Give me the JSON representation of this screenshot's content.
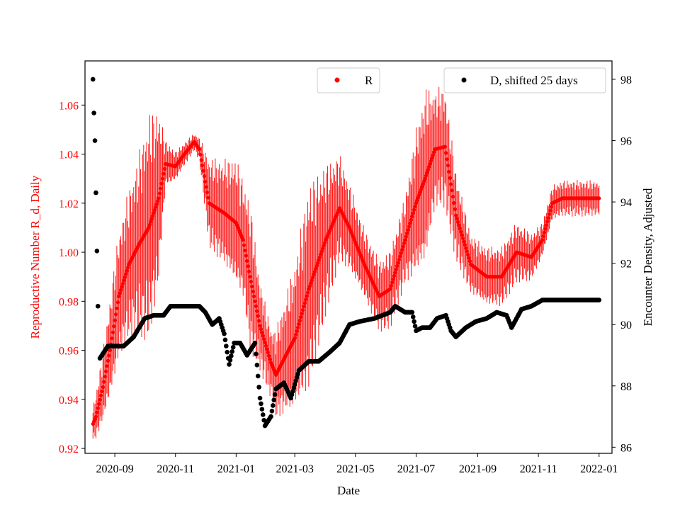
{
  "chart_data": {
    "type": "scatter",
    "xlabel": "Date",
    "ylabel_left": "Reproductive Number R_d, Daily",
    "ylabel_right": "Encounter Density, Adjusted",
    "xlim": [
      "2020-08-02",
      "2022-01-14"
    ],
    "ylim_left": [
      0.918,
      1.078
    ],
    "ylim_right": [
      85.8,
      98.6
    ],
    "x_ticks": [
      "2020-09-01",
      "2020-11-01",
      "2021-01-01",
      "2021-03-01",
      "2021-05-01",
      "2021-07-01",
      "2021-09-01",
      "2021-11-01",
      "2022-01-01"
    ],
    "x_tick_labels": [
      "2020-09",
      "2020-11",
      "2021-01",
      "2021-03",
      "2021-05",
      "2021-07",
      "2021-09",
      "2021-11",
      "2022-01"
    ],
    "y_ticks_left": [
      0.92,
      0.94,
      0.96,
      0.98,
      1.0,
      1.02,
      1.04,
      1.06
    ],
    "y_tick_labels_left": [
      "0.92",
      "0.94",
      "0.96",
      "0.98",
      "1.00",
      "1.02",
      "1.04",
      "1.06"
    ],
    "y_ticks_right": [
      86,
      88,
      90,
      92,
      94,
      96,
      98
    ],
    "y_tick_labels_right": [
      "86",
      "88",
      "90",
      "92",
      "94",
      "96",
      "98"
    ],
    "grid": false,
    "legend_r": {
      "label": "R",
      "position": "top-center"
    },
    "legend_d": {
      "label": "D, shifted 25 days",
      "position": "top-right"
    },
    "colors": {
      "R": "#ff0000",
      "D": "#000000",
      "left_axis": "#ff0000",
      "right_axis": "#000000"
    },
    "series": [
      {
        "name": "R",
        "axis": "left",
        "marker": "dot-with-errorbar",
        "knots": [
          [
            "2020-08-10",
            0.93,
            0.006
          ],
          [
            "2020-08-13",
            0.933,
            0.008
          ],
          [
            "2020-08-20",
            0.945,
            0.012
          ],
          [
            "2020-08-27",
            0.96,
            0.017
          ],
          [
            "2020-09-05",
            0.982,
            0.022
          ],
          [
            "2020-09-15",
            0.995,
            0.025
          ],
          [
            "2020-09-25",
            1.003,
            0.03
          ],
          [
            "2020-10-05",
            1.01,
            0.038
          ],
          [
            "2020-10-15",
            1.022,
            0.03
          ],
          [
            "2020-10-22",
            1.036,
            0.008
          ],
          [
            "2020-11-01",
            1.035,
            0.005
          ],
          [
            "2020-11-10",
            1.04,
            0.004
          ],
          [
            "2020-11-20",
            1.045,
            0.003
          ],
          [
            "2020-11-25",
            1.042,
            0.004
          ],
          [
            "2020-12-05",
            1.02,
            0.015
          ],
          [
            "2020-12-20",
            1.016,
            0.018
          ],
          [
            "2021-01-01",
            1.012,
            0.022
          ],
          [
            "2021-01-08",
            1.005,
            0.02
          ],
          [
            "2021-01-15",
            0.99,
            0.025
          ],
          [
            "2021-01-25",
            0.97,
            0.015
          ],
          [
            "2021-02-05",
            0.955,
            0.012
          ],
          [
            "2021-02-10",
            0.95,
            0.015
          ],
          [
            "2021-02-20",
            0.958,
            0.02
          ],
          [
            "2021-03-01",
            0.965,
            0.025
          ],
          [
            "2021-03-15",
            0.985,
            0.035
          ],
          [
            "2021-04-01",
            1.005,
            0.025
          ],
          [
            "2021-04-15",
            1.018,
            0.018
          ],
          [
            "2021-04-25",
            1.01,
            0.015
          ],
          [
            "2021-05-10",
            0.995,
            0.012
          ],
          [
            "2021-05-25",
            0.982,
            0.012
          ],
          [
            "2021-06-05",
            0.985,
            0.013
          ],
          [
            "2021-06-20",
            1.005,
            0.015
          ],
          [
            "2021-07-01",
            1.02,
            0.025
          ],
          [
            "2021-07-10",
            1.03,
            0.03
          ],
          [
            "2021-07-20",
            1.042,
            0.02
          ],
          [
            "2021-07-30",
            1.043,
            0.02
          ],
          [
            "2021-08-10",
            1.015,
            0.015
          ],
          [
            "2021-08-25",
            0.995,
            0.01
          ],
          [
            "2021-09-10",
            0.99,
            0.01
          ],
          [
            "2021-09-25",
            0.99,
            0.01
          ],
          [
            "2021-10-10",
            1.0,
            0.01
          ],
          [
            "2021-10-25",
            0.998,
            0.008
          ],
          [
            "2021-11-05",
            1.005,
            0.006
          ],
          [
            "2021-11-15",
            1.02,
            0.006
          ],
          [
            "2021-11-25",
            1.022,
            0.006
          ],
          [
            "2022-01-01",
            1.022,
            0.006
          ]
        ]
      },
      {
        "name": "D, shifted 25 days",
        "axis": "right",
        "marker": "dot",
        "knots": [
          [
            "2020-08-10",
            98.0
          ],
          [
            "2020-08-11",
            96.9
          ],
          [
            "2020-08-12",
            96.0
          ],
          [
            "2020-08-13",
            94.3
          ],
          [
            "2020-08-14",
            92.4
          ],
          [
            "2020-08-15",
            90.6
          ],
          [
            "2020-08-17",
            88.9
          ],
          [
            "2020-08-25",
            89.3
          ],
          [
            "2020-09-10",
            89.3
          ],
          [
            "2020-09-20",
            89.6
          ],
          [
            "2020-10-01",
            90.2
          ],
          [
            "2020-10-10",
            90.3
          ],
          [
            "2020-10-20",
            90.3
          ],
          [
            "2020-10-27",
            90.6
          ],
          [
            "2020-11-05",
            90.6
          ],
          [
            "2020-11-25",
            90.6
          ],
          [
            "2020-12-01",
            90.4
          ],
          [
            "2020-12-08",
            90.0
          ],
          [
            "2020-12-15",
            90.2
          ],
          [
            "2020-12-20",
            89.7
          ],
          [
            "2020-12-25",
            88.7
          ],
          [
            "2020-12-30",
            89.4
          ],
          [
            "2021-01-05",
            89.4
          ],
          [
            "2021-01-12",
            89.0
          ],
          [
            "2021-01-20",
            89.4
          ],
          [
            "2021-01-25",
            87.6
          ],
          [
            "2021-01-30",
            86.7
          ],
          [
            "2021-02-05",
            87.0
          ],
          [
            "2021-02-10",
            87.9
          ],
          [
            "2021-02-18",
            88.1
          ],
          [
            "2021-02-25",
            87.6
          ],
          [
            "2021-03-05",
            88.5
          ],
          [
            "2021-03-15",
            88.8
          ],
          [
            "2021-03-25",
            88.8
          ],
          [
            "2021-04-05",
            89.1
          ],
          [
            "2021-04-15",
            89.4
          ],
          [
            "2021-04-25",
            90.0
          ],
          [
            "2021-05-05",
            90.1
          ],
          [
            "2021-05-20",
            90.2
          ],
          [
            "2021-06-05",
            90.4
          ],
          [
            "2021-06-10",
            90.6
          ],
          [
            "2021-06-20",
            90.4
          ],
          [
            "2021-06-27",
            90.4
          ],
          [
            "2021-07-01",
            89.8
          ],
          [
            "2021-07-07",
            89.9
          ],
          [
            "2021-07-15",
            89.9
          ],
          [
            "2021-07-22",
            90.2
          ],
          [
            "2021-07-31",
            90.3
          ],
          [
            "2021-08-05",
            89.8
          ],
          [
            "2021-08-10",
            89.6
          ],
          [
            "2021-08-20",
            89.9
          ],
          [
            "2021-08-30",
            90.1
          ],
          [
            "2021-09-10",
            90.2
          ],
          [
            "2021-09-20",
            90.4
          ],
          [
            "2021-09-30",
            90.3
          ],
          [
            "2021-10-05",
            89.9
          ],
          [
            "2021-10-15",
            90.5
          ],
          [
            "2021-10-25",
            90.6
          ],
          [
            "2021-11-05",
            90.8
          ],
          [
            "2022-01-01",
            90.8
          ]
        ]
      }
    ]
  }
}
